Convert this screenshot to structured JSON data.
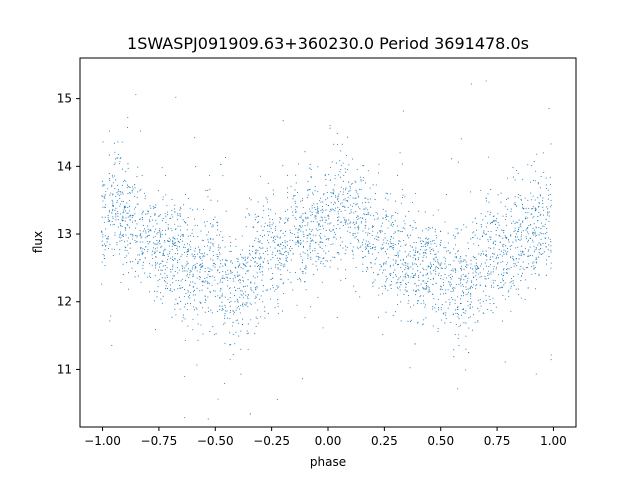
{
  "chart_data": {
    "type": "scatter",
    "title": "1SWASPJ091909.63+360230.0 Period 3691478.0s",
    "xlabel": "phase",
    "ylabel": "flux",
    "xlim": [
      -1.1,
      1.1
    ],
    "ylim": [
      10.15,
      15.6
    ],
    "grid": false,
    "marker_color": "#1f77b4",
    "x_ticks": [
      -1.0,
      -0.75,
      -0.5,
      -0.25,
      0.0,
      0.25,
      0.5,
      0.75,
      1.0
    ],
    "x_tick_labels": [
      "−1.00",
      "−0.75",
      "−0.50",
      "−0.25",
      "0.00",
      "0.25",
      "0.50",
      "0.75",
      "1.00"
    ],
    "y_ticks": [
      11,
      12,
      13,
      14,
      15
    ],
    "y_tick_labels": [
      "11",
      "12",
      "13",
      "14",
      "15"
    ],
    "series": [
      {
        "points_per_curve": 3400,
        "curve": {
          "x": [
            -1.0,
            -0.95,
            -0.9,
            -0.85,
            -0.8,
            -0.75,
            -0.7,
            -0.65,
            -0.6,
            -0.55,
            -0.5,
            -0.45,
            -0.4,
            -0.35,
            -0.3,
            -0.25,
            -0.2,
            -0.15,
            -0.1,
            -0.05,
            0.0,
            0.05,
            0.1,
            0.15,
            0.2,
            0.25,
            0.3,
            0.35,
            0.4,
            0.45,
            0.5,
            0.55,
            0.6,
            0.65,
            0.7,
            0.75,
            0.8,
            0.85,
            0.9,
            0.95,
            1.0
          ],
          "y": [
            13.2,
            13.4,
            13.3,
            13.1,
            12.9,
            12.8,
            12.8,
            12.6,
            12.4,
            12.5,
            12.5,
            12.2,
            12.1,
            12.4,
            12.6,
            12.7,
            12.8,
            13.0,
            13.1,
            13.1,
            13.2,
            13.4,
            13.3,
            13.1,
            12.9,
            12.8,
            12.8,
            12.6,
            12.4,
            12.5,
            12.5,
            12.2,
            12.1,
            12.4,
            12.6,
            12.7,
            12.8,
            13.0,
            13.1,
            13.1,
            13.2
          ]
        },
        "scatter_sd": 0.55
      }
    ]
  }
}
